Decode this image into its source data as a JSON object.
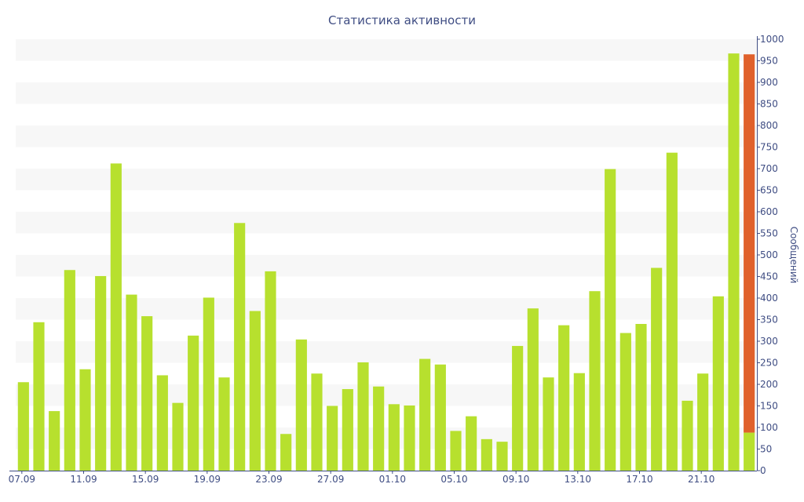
{
  "chart_data": {
    "type": "bar",
    "title": "Статистика активности",
    "ylabel": "Сообщений",
    "xlabel": "",
    "ylim": [
      0,
      1000
    ],
    "y_ticks": [
      0,
      50,
      100,
      150,
      200,
      250,
      300,
      350,
      400,
      450,
      500,
      550,
      600,
      650,
      700,
      750,
      800,
      850,
      900,
      950,
      1000
    ],
    "y_axis_position": "right",
    "x_tick_labels": [
      "07.09",
      "11.09",
      "15.09",
      "19.09",
      "23.09",
      "27.09",
      "01.10",
      "05.10",
      "09.10",
      "13.10",
      "17.10",
      "21.10"
    ],
    "x_tick_every": 4,
    "grid": "horizontal alternating bands",
    "categories": [
      "07.09",
      "08.09",
      "09.09",
      "10.09",
      "11.09",
      "12.09",
      "13.09",
      "14.09",
      "15.09",
      "16.09",
      "17.09",
      "18.09",
      "19.09",
      "20.09",
      "21.09",
      "22.09",
      "23.09",
      "24.09",
      "25.09",
      "26.09",
      "27.09",
      "28.09",
      "29.09",
      "30.09",
      "01.10",
      "02.10",
      "03.10",
      "04.10",
      "05.10",
      "06.10",
      "07.10",
      "08.10",
      "09.10",
      "10.10",
      "11.10",
      "12.10",
      "13.10",
      "14.10",
      "15.10",
      "16.10",
      "17.10",
      "18.10",
      "19.10",
      "20.10",
      "21.10",
      "22.10",
      "23.10",
      "24.10"
    ],
    "values": [
      205,
      344,
      138,
      465,
      235,
      451,
      712,
      408,
      358,
      221,
      157,
      313,
      401,
      216,
      574,
      370,
      462,
      85,
      304,
      225,
      150,
      189,
      251,
      195,
      154,
      151,
      259,
      246,
      92,
      126,
      73,
      67,
      289,
      376,
      216,
      337,
      226,
      416,
      699,
      319,
      340,
      470,
      737,
      162,
      225,
      404,
      967,
      965
    ],
    "highlight": {
      "index": 47,
      "low_value": 88,
      "color": "#e0612c"
    },
    "colors": {
      "bar": "#b7e02e",
      "highlight": "#e0612c",
      "band": "#f7f7f7",
      "text": "#3f4d83",
      "axis": "#3f4d83"
    }
  }
}
